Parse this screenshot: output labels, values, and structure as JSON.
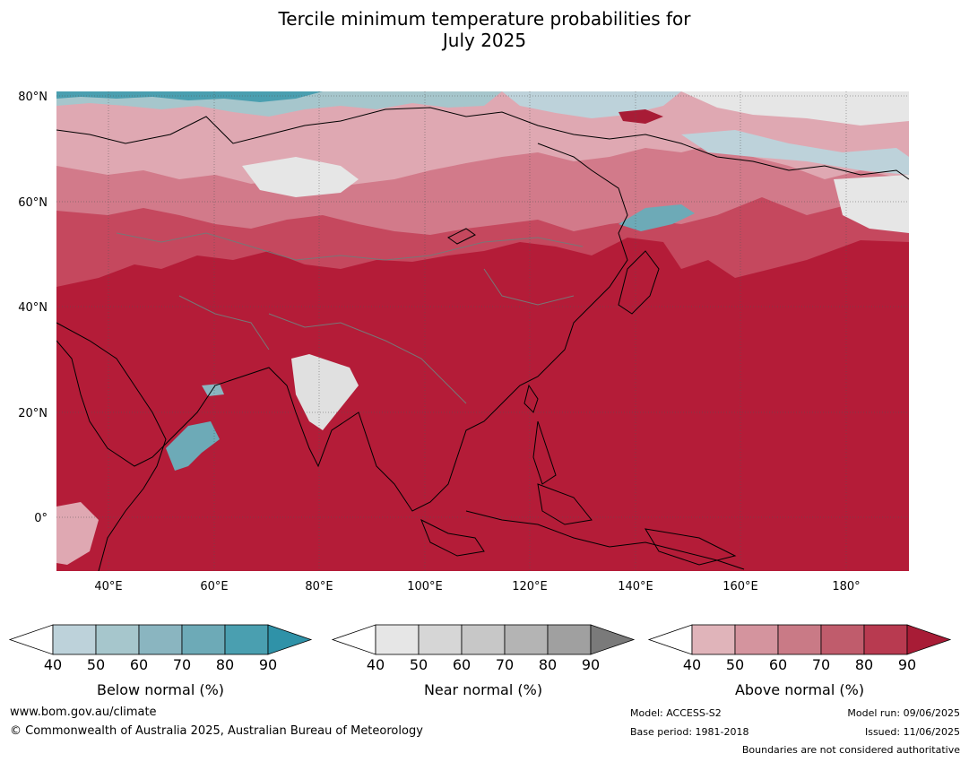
{
  "title": {
    "line1": "Tercile minimum temperature probabilities for",
    "line2": "July 2025"
  },
  "map": {
    "lat_labels": [
      "80°N",
      "60°N",
      "40°N",
      "20°N",
      "0°"
    ],
    "lon_labels": [
      "40°E",
      "60°E",
      "80°E",
      "100°E",
      "120°E",
      "140°E",
      "160°E",
      "180°"
    ],
    "dominant_color": "#b41c38"
  },
  "colorbars": [
    {
      "label": "Below normal (%)",
      "ticks": [
        "40",
        "50",
        "60",
        "70",
        "80",
        "90"
      ],
      "colors": [
        "#ffffff",
        "#bdd2da",
        "#a6c6cc",
        "#8ab5c0",
        "#6daab7",
        "#4a9fb0",
        "#2f92a8"
      ]
    },
    {
      "label": "Near normal (%)",
      "ticks": [
        "40",
        "50",
        "60",
        "70",
        "80",
        "90"
      ],
      "colors": [
        "#ffffff",
        "#e6e6e6",
        "#d6d6d6",
        "#c7c7c7",
        "#b4b4b4",
        "#a0a0a0",
        "#7a7a7a"
      ]
    },
    {
      "label": "Above normal (%)",
      "ticks": [
        "40",
        "50",
        "60",
        "70",
        "80",
        "90"
      ],
      "colors": [
        "#ffffff",
        "#e0b4ba",
        "#d4949e",
        "#c97a86",
        "#c05c6c",
        "#b83a50",
        "#a81c36"
      ]
    }
  ],
  "footer": {
    "website": "www.bom.gov.au/climate",
    "copyright": "© Commonwealth of Australia 2025, Australian Bureau of Meteorology",
    "model": "Model: ACCESS-S2",
    "base_period": "Base period: 1981-2018",
    "model_run": "Model run: 09/06/2025",
    "issued": "Issued: 11/06/2025",
    "disclaimer": "Boundaries are not considered authoritative"
  }
}
